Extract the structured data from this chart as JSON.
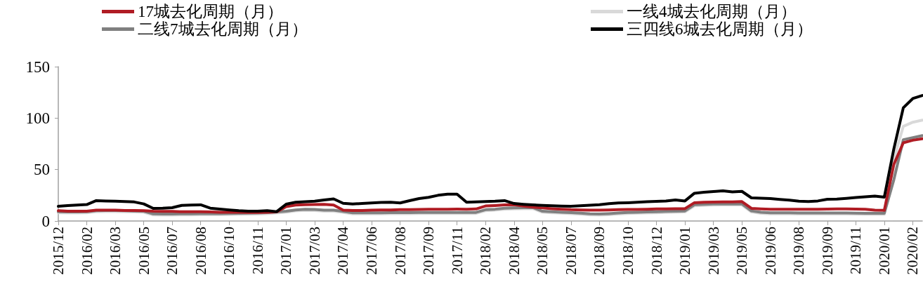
{
  "chart_data": {
    "type": "line",
    "categories": [
      "2015/12",
      null,
      null,
      "2016/02",
      null,
      null,
      "2016/03",
      null,
      null,
      "2016/05",
      null,
      null,
      "2016/07",
      null,
      null,
      "2016/08",
      null,
      null,
      "2016/10",
      null,
      null,
      "2016/11",
      null,
      null,
      "2017/01",
      null,
      null,
      "2017/03",
      null,
      null,
      "2017/04",
      null,
      null,
      "2017/06",
      null,
      null,
      "2017/08",
      null,
      null,
      "2017/09",
      null,
      null,
      "2017/11",
      null,
      null,
      "2018/02",
      null,
      null,
      "2018/04",
      null,
      null,
      "2018/05",
      null,
      null,
      "2018/07",
      null,
      null,
      "2018/09",
      null,
      null,
      "2018/10",
      null,
      null,
      "2018/12",
      null,
      null,
      "2019/01",
      null,
      null,
      "2019/03",
      null,
      null,
      "2019/05",
      null,
      null,
      "2019/06",
      null,
      null,
      "2019/08",
      null,
      null,
      "2019/09",
      null,
      null,
      "2019/11",
      null,
      null,
      "2020/01",
      null,
      null,
      "2020/02",
      null
    ],
    "ylim": [
      0,
      150
    ],
    "yticks": [
      0,
      50,
      100,
      150
    ],
    "grid": false,
    "legend": "top",
    "marker": "none",
    "line_style": "solid",
    "series": [
      {
        "name": "一线4城去化周期（月）",
        "color": "#d9d9d9",
        "values": [
          8,
          7.8,
          7.8,
          8,
          9,
          9.2,
          9.2,
          9,
          8.8,
          8.5,
          6,
          5.8,
          5.8,
          6,
          6,
          6.2,
          6.2,
          6.2,
          6.3,
          6.5,
          6.6,
          6.8,
          7.2,
          7.8,
          8.5,
          9.8,
          10.4,
          10.2,
          9.6,
          9.5,
          8.4,
          7,
          7,
          7,
          7,
          7.1,
          7.2,
          7.2,
          7.3,
          7.3,
          7.3,
          7.3,
          7.4,
          7.4,
          7.4,
          10,
          10.5,
          11.4,
          11.7,
          12,
          12,
          8.5,
          8,
          7.6,
          7.2,
          6.6,
          6,
          5.8,
          6.2,
          6.8,
          7.3,
          7.6,
          7.8,
          8,
          8.3,
          8.6,
          8.8,
          14.8,
          15.2,
          15.5,
          15.6,
          15.6,
          15.6,
          8.8,
          7.5,
          7,
          7,
          7,
          6.8,
          6.8,
          6.8,
          6.8,
          6.8,
          6.8,
          6.6,
          6.5,
          6.5,
          6.5,
          60,
          92,
          96,
          98
        ]
      },
      {
        "name": "二线7城去化周期（月）",
        "color": "#808080",
        "values": [
          9,
          8.8,
          8.8,
          9,
          10,
          10.2,
          10.2,
          10,
          9.8,
          9.5,
          7,
          6.8,
          6.8,
          7,
          7,
          7.2,
          7.2,
          7.2,
          7.3,
          7.5,
          7.6,
          7.8,
          8.2,
          8.8,
          9.5,
          10.8,
          11.4,
          11.2,
          10.6,
          10.5,
          9.4,
          8,
          8,
          8,
          8,
          8.1,
          8.2,
          8.2,
          8.3,
          8.3,
          8.3,
          8.3,
          8.4,
          8.4,
          8.4,
          11,
          11.5,
          12.4,
          12.7,
          13,
          13,
          9.5,
          9,
          8.6,
          8.2,
          7.6,
          7,
          6.8,
          7.2,
          7.8,
          8.3,
          8.6,
          8.8,
          9,
          9.3,
          9.6,
          9.8,
          15.8,
          16.2,
          16.5,
          16.6,
          16.6,
          16.6,
          9.8,
          8.5,
          8,
          8,
          8,
          7.8,
          7.8,
          7.8,
          7.8,
          7.8,
          7.8,
          7.6,
          7.5,
          7.5,
          7.5,
          40,
          79,
          81,
          83
        ]
      },
      {
        "name": "17城去化周期（月）",
        "color": "#b01c24",
        "values": [
          10,
          9.5,
          9.5,
          9.5,
          10.5,
          10.5,
          10.5,
          10.3,
          10.2,
          10,
          9.5,
          9.3,
          9.3,
          9,
          9,
          9,
          8.8,
          8.6,
          8.5,
          8.5,
          8.3,
          8.3,
          8.5,
          8.8,
          14,
          15.5,
          15.8,
          16,
          16.2,
          15.5,
          10.5,
          10.2,
          10.3,
          10.5,
          10.7,
          10.8,
          11,
          11,
          11.2,
          11.4,
          11.5,
          11.5,
          11.6,
          11.5,
          11.7,
          14.6,
          15,
          15.6,
          15.9,
          14.5,
          13.5,
          12.7,
          12,
          11.5,
          11,
          10.8,
          10.5,
          10.6,
          10.8,
          11,
          11.2,
          11.3,
          11.5,
          11.7,
          11.8,
          12,
          12,
          17.8,
          18.2,
          18.4,
          18.6,
          18.6,
          18.9,
          12.3,
          11.8,
          11.5,
          11.4,
          11.4,
          11.4,
          11.4,
          11.4,
          11.6,
          11.8,
          11.7,
          11.6,
          11.4,
          10.6,
          10.4,
          55,
          76,
          78.5,
          80
        ]
      },
      {
        "name": "三四线6城去化周期（月）",
        "color": "#000000",
        "values": [
          14.3,
          15,
          15.5,
          16,
          19.8,
          19.5,
          19.3,
          19,
          18.5,
          16.6,
          12.3,
          12.5,
          13,
          15.2,
          15.5,
          15.7,
          12.5,
          11.6,
          10.8,
          10,
          9.6,
          9.5,
          10,
          9.1,
          16.4,
          18.2,
          18.7,
          19.3,
          20.5,
          21.5,
          17.2,
          16.6,
          17,
          17.5,
          18,
          18.2,
          17.6,
          19.8,
          21.8,
          23,
          25,
          26.1,
          26.1,
          18.2,
          18.5,
          18.9,
          19.2,
          19.8,
          17,
          16.2,
          15.6,
          15.2,
          14.8,
          14.5,
          14.3,
          14.8,
          15.3,
          15.8,
          16.8,
          17.5,
          17.8,
          18.3,
          18.8,
          19.1,
          19.5,
          20.5,
          19.5,
          27,
          28,
          28.7,
          29.3,
          28.3,
          28.8,
          22.5,
          22.2,
          21.8,
          21,
          20.3,
          19.2,
          19,
          19.5,
          21.1,
          21.3,
          22,
          22.8,
          23.5,
          24.2,
          23.2,
          70,
          110,
          119,
          122
        ]
      }
    ]
  }
}
